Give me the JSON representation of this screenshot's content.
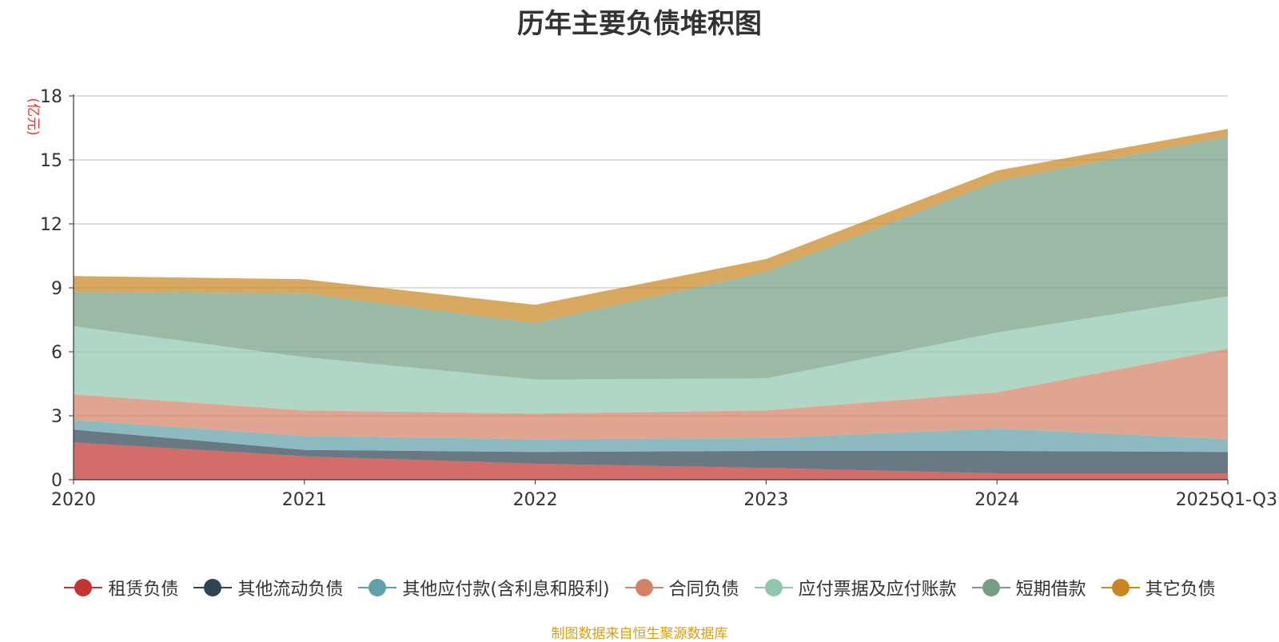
{
  "chart_data": {
    "type": "area",
    "stacked": true,
    "title": "历年主要负债堆积图",
    "ylabel": "(亿元)",
    "xlabel": "",
    "ylim": [
      0,
      18
    ],
    "yticks": [
      0,
      3,
      6,
      9,
      12,
      15,
      18
    ],
    "categories": [
      "2020",
      "2021",
      "2022",
      "2023",
      "2024",
      "2025Q1-Q3"
    ],
    "series": [
      {
        "name": "租赁负债",
        "color": "#c23531",
        "values": [
          1.75,
          1.1,
          0.75,
          0.55,
          0.3,
          0.3
        ]
      },
      {
        "name": "其他流动负债",
        "color": "#2f4554",
        "values": [
          0.6,
          0.3,
          0.55,
          0.8,
          1.05,
          1.0
        ]
      },
      {
        "name": "其他应付款(含利息和股利)",
        "color": "#61a0a8",
        "values": [
          0.45,
          0.65,
          0.6,
          0.6,
          1.05,
          0.6
        ]
      },
      {
        "name": "合同负债",
        "color": "#d48265",
        "values": [
          1.2,
          1.2,
          1.2,
          1.3,
          1.7,
          4.25
        ]
      },
      {
        "name": "应付票据及应付账款",
        "color": "#91c7ae",
        "values": [
          3.2,
          2.5,
          1.6,
          1.5,
          2.8,
          2.45
        ]
      },
      {
        "name": "短期借款",
        "color": "#749f83",
        "values": [
          1.6,
          3.0,
          2.65,
          5.0,
          7.1,
          7.5
        ]
      },
      {
        "name": "其它负债",
        "color": "#ca8622",
        "values": [
          0.75,
          0.65,
          0.85,
          0.6,
          0.5,
          0.35
        ]
      }
    ],
    "legend_position": "bottom",
    "grid": true
  },
  "source_note": "制图数据来自恒生聚源数据库"
}
